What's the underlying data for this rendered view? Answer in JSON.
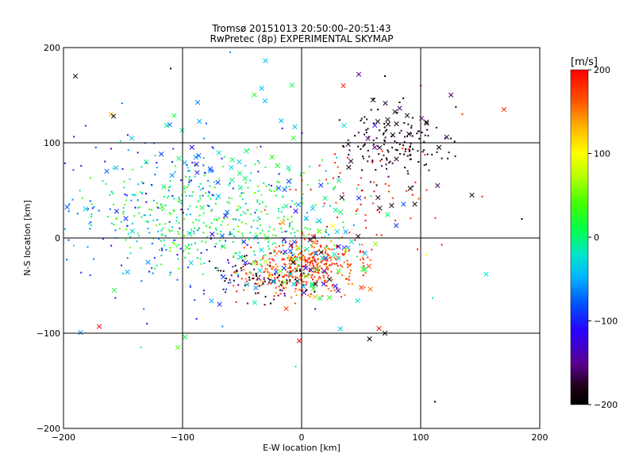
{
  "chart_data": {
    "type": "scatter",
    "title": "Tromsø 20151013 20:50:00–20:51:43",
    "subtitle": "RwPretec (8p) EXPERIMENTAL SKYMAP",
    "xlabel": "E-W location [km]",
    "ylabel": "N-S location [km]",
    "xlim": [
      -200,
      200
    ],
    "ylim": [
      -200,
      200
    ],
    "x_ticks": [
      -200,
      -100,
      0,
      100,
      200
    ],
    "y_ticks": [
      -200,
      -100,
      0,
      100,
      200
    ],
    "x_tick_labels": [
      "−200",
      "−100",
      "0",
      "100",
      "200"
    ],
    "y_tick_labels": [
      "−200",
      "−100",
      "0",
      "100",
      "200"
    ],
    "grid": true,
    "gridlines": [
      -100,
      0,
      100
    ],
    "colorbar": {
      "label": "[m/s]",
      "range": [
        -200,
        200
      ],
      "tick_values": [
        200,
        100,
        0,
        -100,
        -200
      ],
      "tick_labels": [
        "200",
        "100",
        "0",
        "−100",
        "−200"
      ]
    },
    "marker_types": [
      "x",
      "dot"
    ],
    "clusters": [
      {
        "center": [
          -5,
          -35
        ],
        "spread": [
          22,
          14
        ],
        "n": 260,
        "velocity_range": [
          140,
          200
        ],
        "marker": "dot"
      },
      {
        "center": [
          18,
          -20
        ],
        "spread": [
          18,
          12
        ],
        "n": 140,
        "velocity_range": [
          150,
          200
        ],
        "marker": "dot"
      },
      {
        "center": [
          -30,
          -45
        ],
        "spread": [
          20,
          12
        ],
        "n": 80,
        "velocity_range": [
          -200,
          -150
        ],
        "marker": "dot"
      },
      {
        "center": [
          80,
          100
        ],
        "spread": [
          22,
          20
        ],
        "n": 140,
        "velocity_range": [
          -200,
          -160
        ],
        "marker": "dot"
      },
      {
        "center": [
          55,
          40
        ],
        "spread": [
          35,
          25
        ],
        "n": 60,
        "velocity_range": [
          170,
          200
        ],
        "marker": "dot"
      },
      {
        "center": [
          -80,
          30
        ],
        "spread": [
          55,
          30
        ],
        "n": 320,
        "velocity_range": [
          -60,
          60
        ],
        "marker": "dot"
      },
      {
        "center": [
          -50,
          10
        ],
        "spread": [
          45,
          25
        ],
        "n": 140,
        "velocity_range": [
          -10,
          50
        ],
        "marker": "dot"
      },
      {
        "center": [
          -110,
          20
        ],
        "spread": [
          50,
          50
        ],
        "n": 140,
        "velocity_range": [
          -130,
          -60
        ],
        "marker": "dot"
      },
      {
        "center": [
          -60,
          40
        ],
        "spread": [
          70,
          60
        ],
        "n": 100,
        "velocity_range": [
          -120,
          30
        ],
        "marker": "x"
      },
      {
        "center": [
          10,
          -30
        ],
        "spread": [
          30,
          20
        ],
        "n": 70,
        "velocity_range": [
          -200,
          200
        ],
        "marker": "x"
      },
      {
        "center": [
          80,
          100
        ],
        "spread": [
          30,
          30
        ],
        "n": 30,
        "velocity_range": [
          -200,
          -150
        ],
        "marker": "x"
      }
    ],
    "outliers": [
      {
        "x": -190,
        "y": 170,
        "v": -200,
        "marker": "x"
      },
      {
        "x": -110,
        "y": 178,
        "v": -200,
        "marker": "dot"
      },
      {
        "x": -60,
        "y": 195,
        "v": -60,
        "marker": "dot"
      },
      {
        "x": -160,
        "y": 130,
        "v": 130,
        "marker": "x"
      },
      {
        "x": -158,
        "y": 128,
        "v": -200,
        "marker": "x"
      },
      {
        "x": 35,
        "y": 160,
        "v": 190,
        "marker": "x"
      },
      {
        "x": 48,
        "y": 172,
        "v": -150,
        "marker": "x"
      },
      {
        "x": 60,
        "y": 145,
        "v": -200,
        "marker": "x"
      },
      {
        "x": 70,
        "y": 170,
        "v": -200,
        "marker": "dot"
      },
      {
        "x": 100,
        "y": 160,
        "v": 200,
        "marker": "dot"
      },
      {
        "x": 135,
        "y": 130,
        "v": 180,
        "marker": "dot"
      },
      {
        "x": 170,
        "y": 135,
        "v": 180,
        "marker": "x"
      },
      {
        "x": 143,
        "y": 45,
        "v": -200,
        "marker": "x"
      },
      {
        "x": 185,
        "y": 20,
        "v": -200,
        "marker": "dot"
      },
      {
        "x": 155,
        "y": -38,
        "v": -20,
        "marker": "x"
      },
      {
        "x": 112,
        "y": -172,
        "v": -200,
        "marker": "dot"
      },
      {
        "x": 57,
        "y": -106,
        "v": -200,
        "marker": "x"
      },
      {
        "x": 65,
        "y": -95,
        "v": 200,
        "marker": "x"
      },
      {
        "x": 70,
        "y": -100,
        "v": -200,
        "marker": "x"
      },
      {
        "x": -104,
        "y": -115,
        "v": 40,
        "marker": "x"
      },
      {
        "x": -170,
        "y": -93,
        "v": 190,
        "marker": "x"
      },
      {
        "x": -98,
        "y": -104,
        "v": 20,
        "marker": "x"
      },
      {
        "x": -135,
        "y": -115,
        "v": -10,
        "marker": "dot"
      },
      {
        "x": -5,
        "y": -135,
        "v": -10,
        "marker": "dot"
      },
      {
        "x": 110,
        "y": -63,
        "v": -10,
        "marker": "dot"
      },
      {
        "x": 105,
        "y": -18,
        "v": 100,
        "marker": "dot"
      },
      {
        "x": -2,
        "y": -108,
        "v": 200,
        "marker": "x"
      }
    ]
  }
}
